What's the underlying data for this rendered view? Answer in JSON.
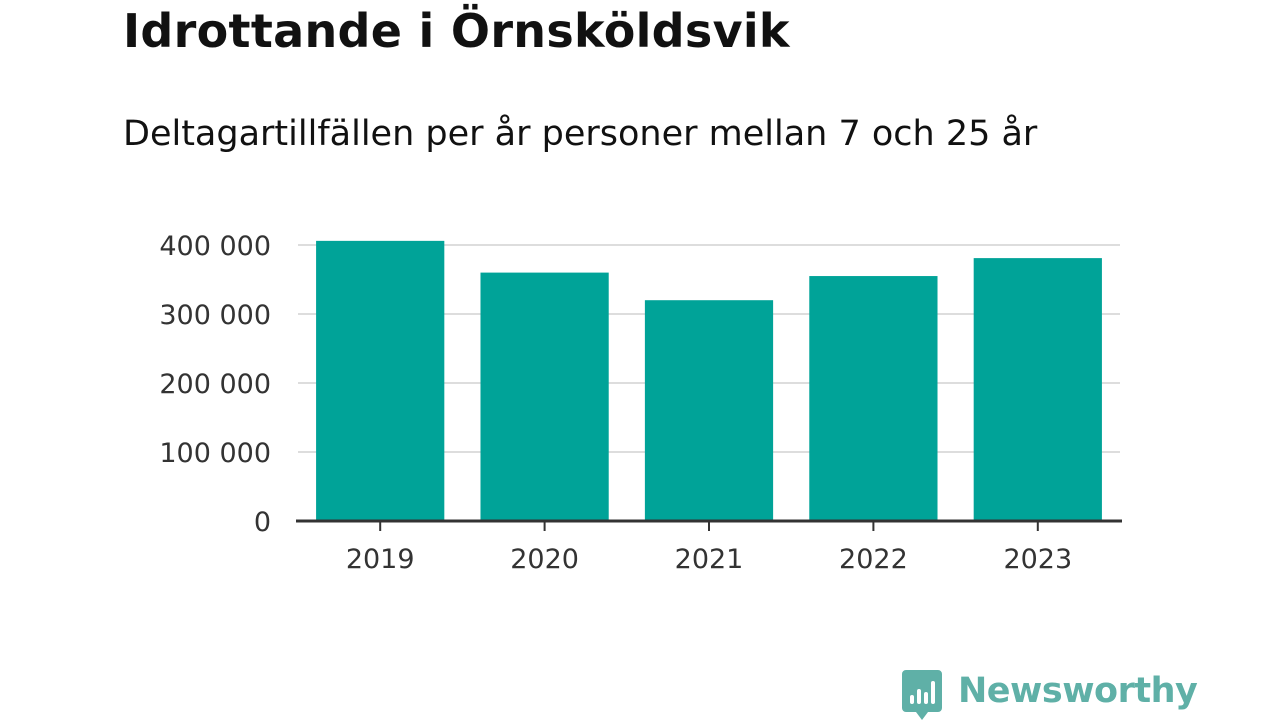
{
  "header": {
    "title": "Idrottande i Örnsköldsvik",
    "subtitle": "Deltagartillfällen per år personer mellan 7 och 25 år"
  },
  "chart_data": {
    "type": "bar",
    "categories": [
      "2019",
      "2020",
      "2021",
      "2022",
      "2023"
    ],
    "values": [
      406000,
      360000,
      320000,
      355000,
      381000
    ],
    "ylim": [
      0,
      400000
    ],
    "yticks": [
      0,
      100000,
      200000,
      300000,
      400000
    ],
    "ytick_labels": [
      "0",
      "100 000",
      "200 000",
      "300 000",
      "400 000"
    ],
    "xlabel": "",
    "ylabel": "",
    "grid": true,
    "bar_color": "#00a398",
    "grid_color": "#dddddd",
    "axis_color": "#333333"
  },
  "branding": {
    "name": "Newsworthy",
    "icon": "newsworthy-logo-icon",
    "color": "#5fb0a7"
  }
}
